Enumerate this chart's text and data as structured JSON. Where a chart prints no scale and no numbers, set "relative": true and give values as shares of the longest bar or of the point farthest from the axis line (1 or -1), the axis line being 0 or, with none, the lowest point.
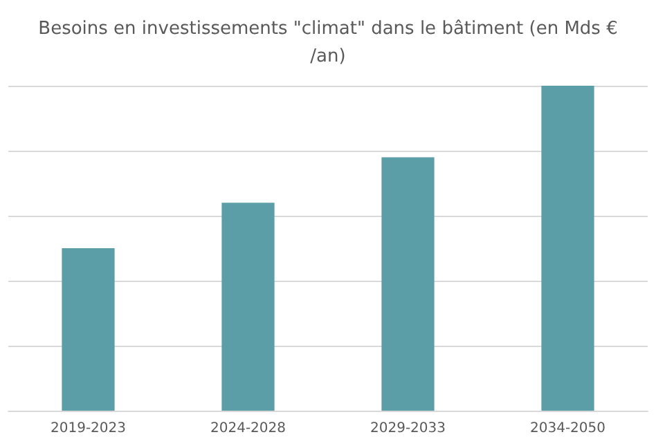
{
  "chart_data": {
    "type": "bar",
    "title": "Besoins en investissements \"climat\" dans le bâtiment (en Mds €/an)",
    "categories": [
      "2019-2023",
      "2024-2028",
      "2029-2033",
      "2034-2050"
    ],
    "values": [
      0.5,
      0.64,
      0.78,
      1
    ],
    "color": "#5b9ea8",
    "relative": true,
    "grid": "y"
  }
}
